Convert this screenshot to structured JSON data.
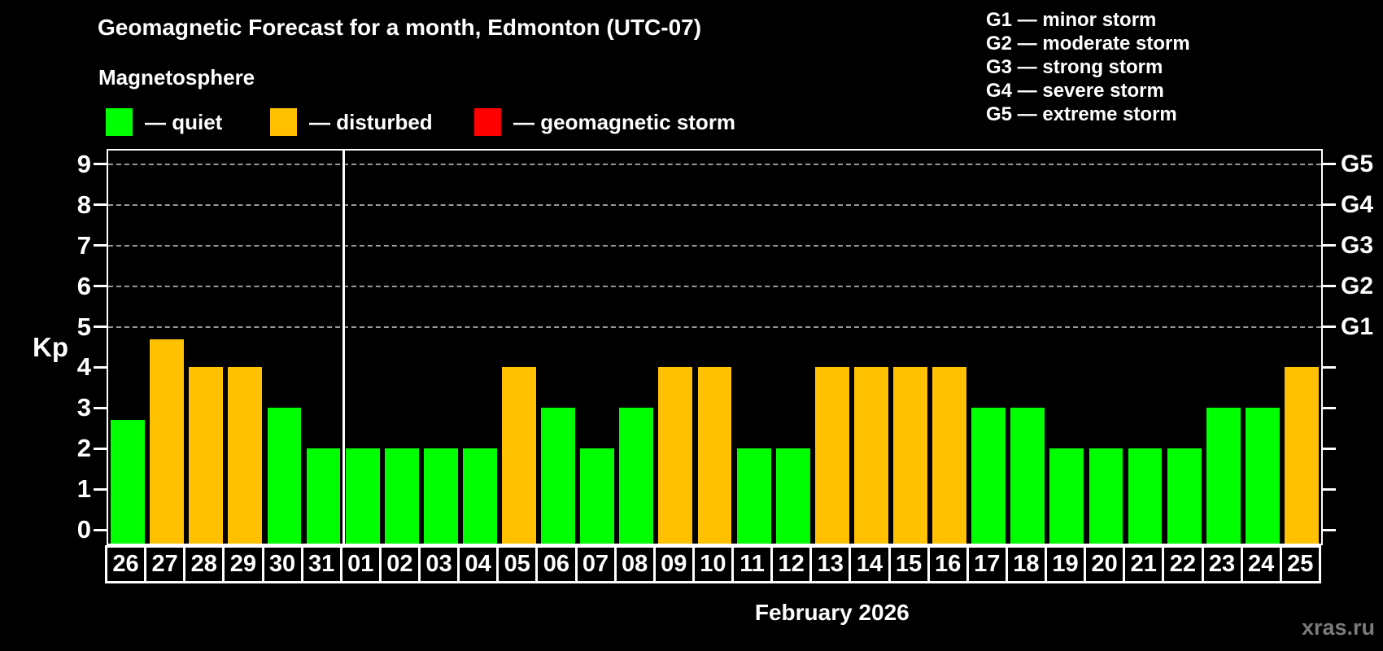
{
  "title": "Geomagnetic Forecast for a month, Edmonton (UTC-07)",
  "subtitle": "Magnetosphere",
  "legend": [
    {
      "key": "quiet",
      "label": "— quiet",
      "color": "#00ff00",
      "x": 130
    },
    {
      "key": "disturbed",
      "label": "— disturbed",
      "color": "#ffc000",
      "x": 332
    },
    {
      "key": "storm",
      "label": "— geomagnetic storm",
      "color": "#ff0000",
      "x": 583
    }
  ],
  "g_scale_legend": [
    "G1 — minor storm",
    "G2 — moderate storm",
    "G3 — strong storm",
    "G4 — severe storm",
    "G5 — extreme storm"
  ],
  "watermark": "xras.ru",
  "chart_data": {
    "type": "bar",
    "title": "Geomagnetic Forecast for a month, Edmonton (UTC-07)",
    "ylabel": "Kp",
    "xlabel": "February 2026",
    "ylim": [
      0,
      9
    ],
    "yticks": [
      0,
      1,
      2,
      3,
      4,
      5,
      6,
      7,
      8,
      9
    ],
    "gridlines_at": [
      5,
      6,
      7,
      8,
      9
    ],
    "grid": "dashed-horizontal",
    "legend_position": "top-left",
    "right_axis": [
      {
        "kp": 5,
        "label": "G1"
      },
      {
        "kp": 6,
        "label": "G2"
      },
      {
        "kp": 7,
        "label": "G3"
      },
      {
        "kp": 8,
        "label": "G4"
      },
      {
        "kp": 9,
        "label": "G5"
      }
    ],
    "separator_index": 6,
    "colors": {
      "quiet": "#00ff00",
      "disturbed": "#ffc000",
      "storm": "#ff0000"
    },
    "categories": [
      "26",
      "27",
      "28",
      "29",
      "30",
      "31",
      "01",
      "02",
      "03",
      "04",
      "05",
      "06",
      "07",
      "08",
      "09",
      "10",
      "11",
      "12",
      "13",
      "14",
      "15",
      "16",
      "17",
      "18",
      "19",
      "20",
      "21",
      "22",
      "23",
      "24",
      "25"
    ],
    "bars": [
      {
        "day": "26",
        "value": 2.7,
        "state": "quiet"
      },
      {
        "day": "27",
        "value": 4.7,
        "state": "disturbed"
      },
      {
        "day": "28",
        "value": 4,
        "state": "disturbed"
      },
      {
        "day": "29",
        "value": 4,
        "state": "disturbed"
      },
      {
        "day": "30",
        "value": 3,
        "state": "quiet"
      },
      {
        "day": "31",
        "value": 2,
        "state": "quiet"
      },
      {
        "day": "01",
        "value": 2,
        "state": "quiet"
      },
      {
        "day": "02",
        "value": 2,
        "state": "quiet"
      },
      {
        "day": "03",
        "value": 2,
        "state": "quiet"
      },
      {
        "day": "04",
        "value": 2,
        "state": "quiet"
      },
      {
        "day": "05",
        "value": 4,
        "state": "disturbed"
      },
      {
        "day": "06",
        "value": 3,
        "state": "quiet"
      },
      {
        "day": "07",
        "value": 2,
        "state": "quiet"
      },
      {
        "day": "08",
        "value": 3,
        "state": "quiet"
      },
      {
        "day": "09",
        "value": 4,
        "state": "disturbed"
      },
      {
        "day": "10",
        "value": 4,
        "state": "disturbed"
      },
      {
        "day": "11",
        "value": 2,
        "state": "quiet"
      },
      {
        "day": "12",
        "value": 2,
        "state": "quiet"
      },
      {
        "day": "13",
        "value": 4,
        "state": "disturbed"
      },
      {
        "day": "14",
        "value": 4,
        "state": "disturbed"
      },
      {
        "day": "15",
        "value": 4,
        "state": "disturbed"
      },
      {
        "day": "16",
        "value": 4,
        "state": "disturbed"
      },
      {
        "day": "17",
        "value": 3,
        "state": "quiet"
      },
      {
        "day": "18",
        "value": 3,
        "state": "quiet"
      },
      {
        "day": "19",
        "value": 2,
        "state": "quiet"
      },
      {
        "day": "20",
        "value": 2,
        "state": "quiet"
      },
      {
        "day": "21",
        "value": 2,
        "state": "quiet"
      },
      {
        "day": "22",
        "value": 2,
        "state": "quiet"
      },
      {
        "day": "23",
        "value": 3,
        "state": "quiet"
      },
      {
        "day": "24",
        "value": 3,
        "state": "quiet"
      },
      {
        "day": "25",
        "value": 4,
        "state": "disturbed"
      }
    ]
  }
}
